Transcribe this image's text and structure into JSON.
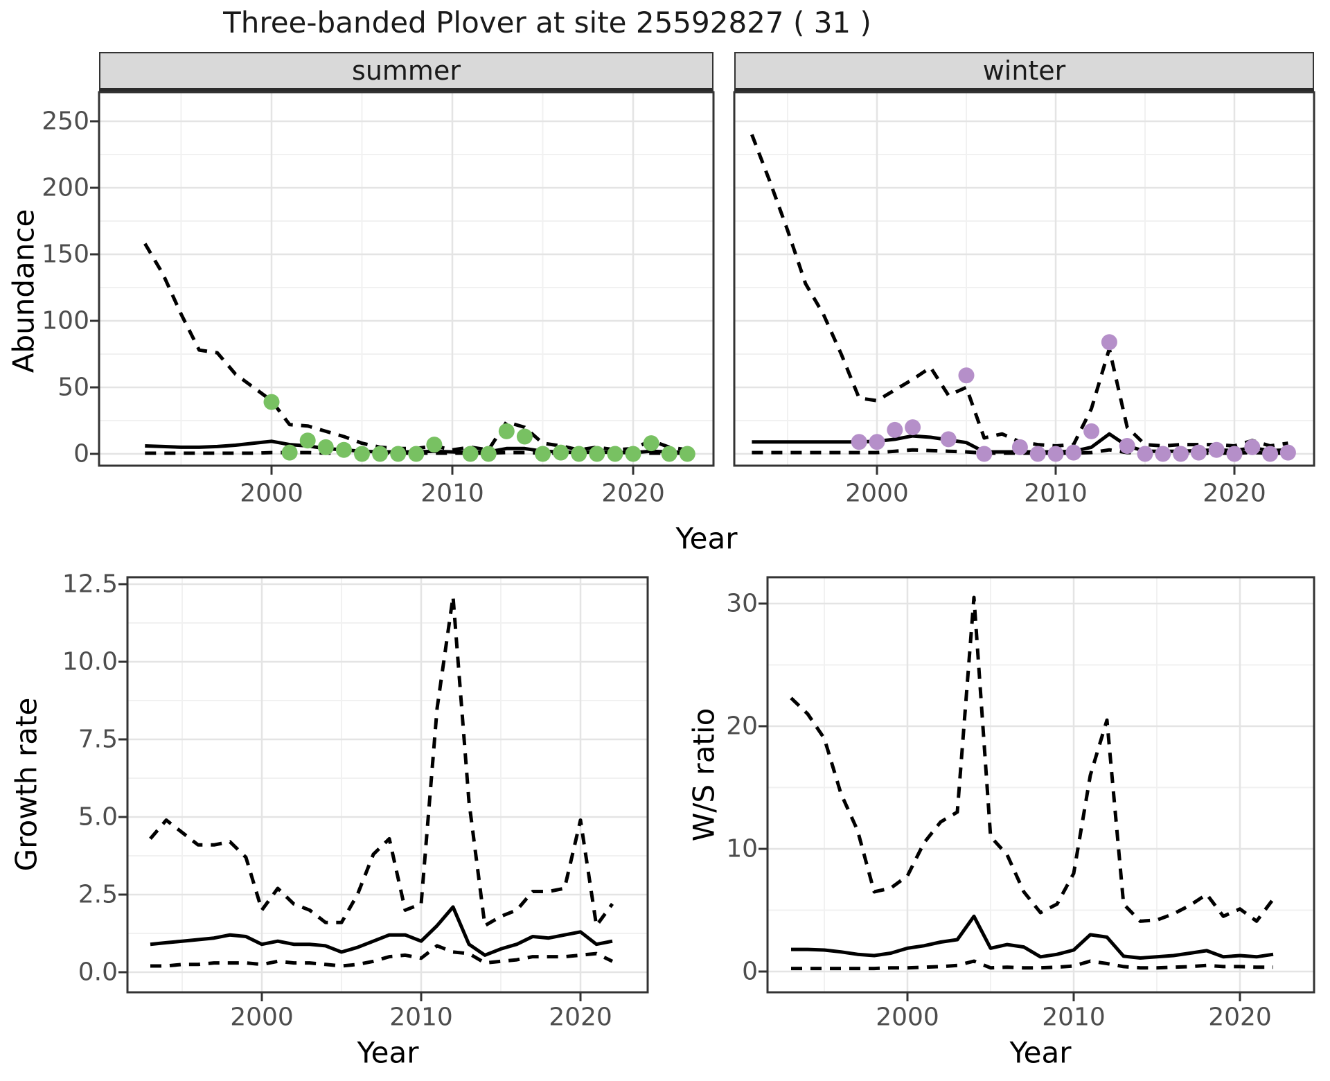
{
  "title": "Three-banded Plover at site 25592827 ( 31 )",
  "facets": {
    "summer": "summer",
    "winter": "winter"
  },
  "axes": {
    "abundance_y": "Abundance",
    "top_x": "Year",
    "growth_y": "Growth rate",
    "growth_x": "Year",
    "ws_y": "W/S ratio",
    "ws_x": "Year"
  },
  "colors": {
    "summer_points": "#78c162",
    "winter_points": "#b58fc9",
    "line": "#000000",
    "strip_bg": "#d9d9d9",
    "grid_major": "#e4e4e4",
    "grid_minor": "#f1f1f1",
    "panel_border": "#333333",
    "tick_text": "#4d4d4d"
  },
  "chart_data": [
    {
      "id": "summer_abundance",
      "type": "line",
      "facet": "summer",
      "ylabel": "Abundance",
      "xlabel": "Year",
      "x": [
        1993,
        1994,
        1995,
        1996,
        1997,
        1998,
        1999,
        2000,
        2001,
        2002,
        2003,
        2004,
        2005,
        2006,
        2007,
        2008,
        2009,
        2010,
        2011,
        2012,
        2013,
        2014,
        2015,
        2016,
        2017,
        2018,
        2019,
        2020,
        2021,
        2022,
        2023
      ],
      "x_ticks": {
        "values": [
          2000,
          2010,
          2020
        ],
        "labels": [
          "2000",
          "2010",
          "2020"
        ]
      },
      "y_ticks": {
        "values": [
          0,
          50,
          100,
          150,
          200,
          250
        ],
        "labels": [
          "0",
          "50",
          "100",
          "150",
          "200",
          "250"
        ]
      },
      "ylim": [
        0,
        250
      ],
      "series": [
        {
          "name": "upper_95_ci",
          "style": "dashed",
          "values": [
            158,
            135,
            105,
            78,
            76,
            60,
            50,
            40,
            22,
            21,
            17,
            13,
            8,
            5,
            4,
            4,
            6,
            3,
            5,
            3,
            24,
            20,
            8,
            6,
            3,
            5,
            3,
            4,
            10,
            5,
            3
          ]
        },
        {
          "name": "median",
          "style": "solid",
          "values": [
            6,
            5.5,
            5,
            5,
            5.5,
            6.5,
            8,
            9.5,
            7,
            6,
            4,
            3,
            2,
            1.5,
            1.5,
            1.5,
            2,
            1.5,
            1,
            1.5,
            4,
            4,
            2,
            1.5,
            1,
            1.5,
            1,
            1,
            2,
            1.5,
            1
          ]
        },
        {
          "name": "lower_95_ci",
          "style": "dashed",
          "values": [
            0.5,
            0.5,
            0.5,
            0.5,
            0.5,
            0.5,
            0.5,
            1,
            1,
            1,
            0.5,
            0.5,
            0.5,
            0.5,
            0.5,
            0.5,
            0.5,
            0.5,
            0.5,
            0.5,
            1,
            1,
            0.5,
            0.5,
            0.5,
            0.5,
            0.5,
            0.5,
            0.5,
            0.5,
            0.5
          ]
        }
      ],
      "points": {
        "name": "observed_count",
        "color": "#78c162",
        "data": [
          [
            2000,
            39
          ],
          [
            2001,
            1
          ],
          [
            2002,
            10
          ],
          [
            2003,
            5
          ],
          [
            2004,
            3
          ],
          [
            2005,
            0
          ],
          [
            2006,
            0
          ],
          [
            2007,
            0
          ],
          [
            2008,
            0
          ],
          [
            2009,
            7
          ],
          [
            2011,
            0
          ],
          [
            2012,
            0
          ],
          [
            2013,
            17
          ],
          [
            2014,
            13
          ],
          [
            2015,
            0
          ],
          [
            2016,
            1
          ],
          [
            2017,
            0
          ],
          [
            2018,
            0
          ],
          [
            2019,
            0
          ],
          [
            2020,
            0
          ],
          [
            2021,
            8
          ],
          [
            2022,
            0
          ],
          [
            2023,
            0
          ]
        ]
      }
    },
    {
      "id": "winter_abundance",
      "type": "line",
      "facet": "winter",
      "ylabel": "Abundance",
      "xlabel": "Year",
      "x": [
        1993,
        1994,
        1995,
        1996,
        1997,
        1998,
        1999,
        2000,
        2001,
        2002,
        2003,
        2004,
        2005,
        2006,
        2007,
        2008,
        2009,
        2010,
        2011,
        2012,
        2013,
        2014,
        2015,
        2016,
        2017,
        2018,
        2019,
        2020,
        2021,
        2022,
        2023
      ],
      "x_ticks": {
        "values": [
          2000,
          2010,
          2020
        ],
        "labels": [
          "2000",
          "2010",
          "2020"
        ]
      },
      "y_ticks": {
        "values": [
          0,
          50,
          100,
          150,
          200,
          250
        ],
        "labels": [
          "0",
          "50",
          "100",
          "150",
          "200",
          "250"
        ]
      },
      "ylim": [
        0,
        250
      ],
      "series": [
        {
          "name": "upper_95_ci",
          "style": "dashed",
          "values": [
            240,
            205,
            168,
            128,
            105,
            75,
            42,
            40,
            48,
            56,
            65,
            44,
            50,
            12,
            15,
            9,
            7,
            6,
            7,
            34,
            79,
            20,
            7,
            6,
            7,
            7,
            7,
            6,
            10,
            6,
            8
          ]
        },
        {
          "name": "median",
          "style": "solid",
          "values": [
            9,
            9,
            9,
            9,
            9,
            9,
            9,
            9.5,
            11,
            13.5,
            12.5,
            10.5,
            8.5,
            1.5,
            1.5,
            1.5,
            1.5,
            1.5,
            2,
            5,
            15,
            6,
            2,
            2,
            2,
            2.5,
            3,
            2.5,
            4.5,
            2.5,
            3
          ]
        },
        {
          "name": "lower_95_ci",
          "style": "dashed",
          "values": [
            1,
            1,
            1,
            1,
            1,
            1,
            1,
            1,
            2,
            3,
            2.5,
            2,
            1.5,
            0.5,
            0.5,
            0.5,
            0.5,
            0.5,
            0.5,
            1,
            3,
            1,
            0.5,
            0.5,
            0.5,
            0.5,
            0.5,
            0.5,
            1,
            0.5,
            0.5
          ]
        }
      ],
      "points": {
        "name": "observed_count",
        "color": "#b58fc9",
        "data": [
          [
            1999,
            9
          ],
          [
            2000,
            9
          ],
          [
            2001,
            18
          ],
          [
            2002,
            20
          ],
          [
            2004,
            11
          ],
          [
            2005,
            59
          ],
          [
            2006,
            0
          ],
          [
            2008,
            5
          ],
          [
            2009,
            0
          ],
          [
            2010,
            0
          ],
          [
            2011,
            1
          ],
          [
            2012,
            17
          ],
          [
            2013,
            84
          ],
          [
            2014,
            6
          ],
          [
            2015,
            0
          ],
          [
            2016,
            0
          ],
          [
            2017,
            0
          ],
          [
            2018,
            1
          ],
          [
            2019,
            3
          ],
          [
            2020,
            0
          ],
          [
            2021,
            5
          ],
          [
            2022,
            0
          ],
          [
            2023,
            1
          ]
        ]
      }
    },
    {
      "id": "growth_rate",
      "type": "line",
      "facet": null,
      "ylabel": "Growth rate",
      "xlabel": "Year",
      "x": [
        1993,
        1994,
        1995,
        1996,
        1997,
        1998,
        1999,
        2000,
        2001,
        2002,
        2003,
        2004,
        2005,
        2006,
        2007,
        2008,
        2009,
        2010,
        2011,
        2012,
        2013,
        2014,
        2015,
        2016,
        2017,
        2018,
        2019,
        2020,
        2021,
        2022
      ],
      "x_ticks": {
        "values": [
          2000,
          2010,
          2020
        ],
        "labels": [
          "2000",
          "2010",
          "2020"
        ]
      },
      "y_ticks": {
        "values": [
          0,
          2.5,
          5,
          7.5,
          10,
          12.5
        ],
        "labels": [
          "0.0",
          "2.5",
          "5.0",
          "7.5",
          "10.0",
          "12.5"
        ]
      },
      "ylim": [
        0,
        12.5
      ],
      "series": [
        {
          "name": "upper_95_ci",
          "style": "dashed",
          "values": [
            4.3,
            4.9,
            4.5,
            4.1,
            4.1,
            4.2,
            3.7,
            2.0,
            2.7,
            2.2,
            2.0,
            1.6,
            1.6,
            2.5,
            3.8,
            4.3,
            2.0,
            2.2,
            8.5,
            12.1,
            5.5,
            1.5,
            1.8,
            2.0,
            2.6,
            2.6,
            2.7,
            4.9,
            1.5,
            2.2
          ]
        },
        {
          "name": "median",
          "style": "solid",
          "values": [
            0.9,
            0.95,
            1.0,
            1.05,
            1.1,
            1.2,
            1.15,
            0.9,
            1.0,
            0.9,
            0.9,
            0.85,
            0.65,
            0.8,
            1.0,
            1.2,
            1.2,
            1.0,
            1.5,
            2.1,
            0.9,
            0.55,
            0.75,
            0.9,
            1.15,
            1.1,
            1.2,
            1.3,
            0.9,
            1.0
          ]
        },
        {
          "name": "lower_95_ci",
          "style": "dashed",
          "values": [
            0.2,
            0.2,
            0.25,
            0.25,
            0.3,
            0.3,
            0.3,
            0.25,
            0.35,
            0.3,
            0.3,
            0.25,
            0.2,
            0.25,
            0.35,
            0.5,
            0.55,
            0.45,
            0.85,
            0.65,
            0.6,
            0.3,
            0.35,
            0.4,
            0.5,
            0.5,
            0.5,
            0.55,
            0.6,
            0.35
          ]
        }
      ],
      "points": null
    },
    {
      "id": "ws_ratio",
      "type": "line",
      "facet": null,
      "ylabel": "W/S ratio",
      "xlabel": "Year",
      "x": [
        1993,
        1994,
        1995,
        1996,
        1997,
        1998,
        1999,
        2000,
        2001,
        2002,
        2003,
        2004,
        2005,
        2006,
        2007,
        2008,
        2009,
        2010,
        2011,
        2012,
        2013,
        2014,
        2015,
        2016,
        2017,
        2018,
        2019,
        2020,
        2021,
        2022
      ],
      "x_ticks": {
        "values": [
          2000,
          2010,
          2020
        ],
        "labels": [
          "2000",
          "2010",
          "2020"
        ]
      },
      "y_ticks": {
        "values": [
          0,
          10,
          20,
          30
        ],
        "labels": [
          "0",
          "10",
          "20",
          "30"
        ]
      },
      "ylim": [
        0,
        30.6
      ],
      "series": [
        {
          "name": "upper_95_ci",
          "style": "dashed",
          "values": [
            22.3,
            21,
            19,
            14.5,
            11.5,
            6.5,
            6.8,
            7.8,
            10.5,
            12.2,
            13,
            30.5,
            11,
            9.5,
            6.5,
            4.8,
            5.5,
            8,
            16,
            20.5,
            5.5,
            4.1,
            4.2,
            4.7,
            5.4,
            6.3,
            4.5,
            5.1,
            4.1,
            5.9
          ]
        },
        {
          "name": "median",
          "style": "solid",
          "values": [
            1.8,
            1.8,
            1.75,
            1.6,
            1.4,
            1.3,
            1.5,
            1.9,
            2.1,
            2.4,
            2.6,
            4.5,
            1.9,
            2.2,
            2.0,
            1.2,
            1.4,
            1.75,
            3.0,
            2.8,
            1.25,
            1.1,
            1.2,
            1.3,
            1.5,
            1.7,
            1.2,
            1.3,
            1.2,
            1.4
          ]
        },
        {
          "name": "lower_95_ci",
          "style": "dashed",
          "values": [
            0.25,
            0.25,
            0.25,
            0.25,
            0.25,
            0.25,
            0.3,
            0.3,
            0.35,
            0.4,
            0.5,
            0.85,
            0.3,
            0.35,
            0.3,
            0.3,
            0.35,
            0.45,
            0.85,
            0.65,
            0.4,
            0.3,
            0.3,
            0.35,
            0.4,
            0.5,
            0.4,
            0.4,
            0.35,
            0.35
          ]
        }
      ],
      "points": null
    }
  ]
}
